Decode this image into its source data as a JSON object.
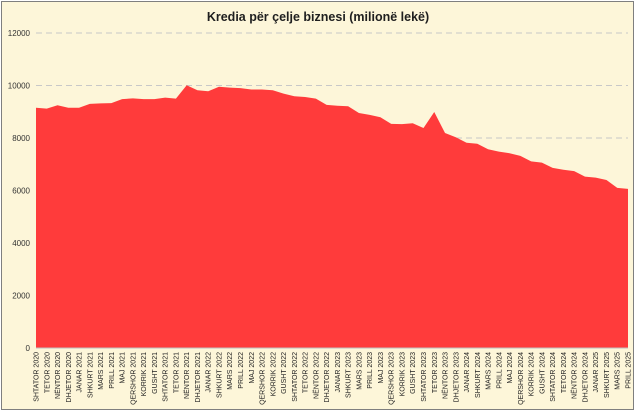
{
  "chart_data": {
    "type": "area",
    "title": "Kredia për çelje biznesi (milionë lekë)",
    "xlabel": "",
    "ylabel": "",
    "ylim": [
      0,
      12000
    ],
    "yticks": [
      0,
      2000,
      4000,
      6000,
      8000,
      10000,
      12000
    ],
    "ytick_labels": [
      "0",
      "2000",
      "4000",
      "6000",
      "8000",
      "10000",
      "12000"
    ],
    "grid": "horizontal-dashed",
    "legend": "none",
    "colors": {
      "fill": "#ff3b3b",
      "background": "#fdf6d9",
      "grid": "#c8c8c8"
    },
    "categories": [
      "SHTATOR 2020",
      "TETOR 2020",
      "NËNTOR 2020",
      "DHJETOR 2020",
      "JANAR 2021",
      "SHKURT 2021",
      "MARS 2021",
      "PRILL 2021",
      "MAJ 2021",
      "QERSHOR 2021",
      "KORRIK 2021",
      "GUSHT 2021",
      "SHTATOR 2021",
      "TETOR 2021",
      "NËNTOR 2021",
      "DHJETOR 2021",
      "JANAR 2022",
      "SHKURT 2022",
      "MARS 2022",
      "PRILL 2022",
      "MAJ 2022",
      "QERSHOR 2022",
      "KORRIK 2022",
      "GUSHT 2022",
      "SHTATOR 2022",
      "TETOR 2022",
      "NËNTOR 2022",
      "DHJETOR 2022",
      "JANAR 2023",
      "SHKURT 2023",
      "MARS 2023",
      "PRILL 2023",
      "MAJ 2023",
      "QERSHOR 2023",
      "KORRIK 2023",
      "GUSHT 2023",
      "SHTATOR 2023",
      "TETOR 2023",
      "NËNTOR 2023",
      "DHJETOR 2023",
      "JANAR 2024",
      "SHKURT 2024",
      "MARS 2024",
      "PRILL 2024",
      "MAJ 2024",
      "QERSHOR 2024",
      "KORRIK 2024",
      "GUSHT 2024",
      "SHTATOR 2024",
      "TETOR 2024",
      "NËNTOR 2024",
      "DHJETOR 2024",
      "JANAR 2025",
      "SHKURT 2025",
      "MARS 2025",
      "PRILL 2025"
    ],
    "values": [
      9150,
      9120,
      9250,
      9150,
      9150,
      9300,
      9320,
      9330,
      9480,
      9510,
      9480,
      9480,
      9540,
      9500,
      10010,
      9820,
      9780,
      9950,
      9920,
      9900,
      9850,
      9850,
      9820,
      9690,
      9590,
      9560,
      9500,
      9260,
      9230,
      9210,
      8950,
      8880,
      8790,
      8540,
      8530,
      8560,
      8380,
      8990,
      8190,
      8030,
      7820,
      7780,
      7570,
      7480,
      7420,
      7320,
      7110,
      7060,
      6860,
      6790,
      6740,
      6530,
      6490,
      6400,
      6100,
      6060
    ]
  }
}
